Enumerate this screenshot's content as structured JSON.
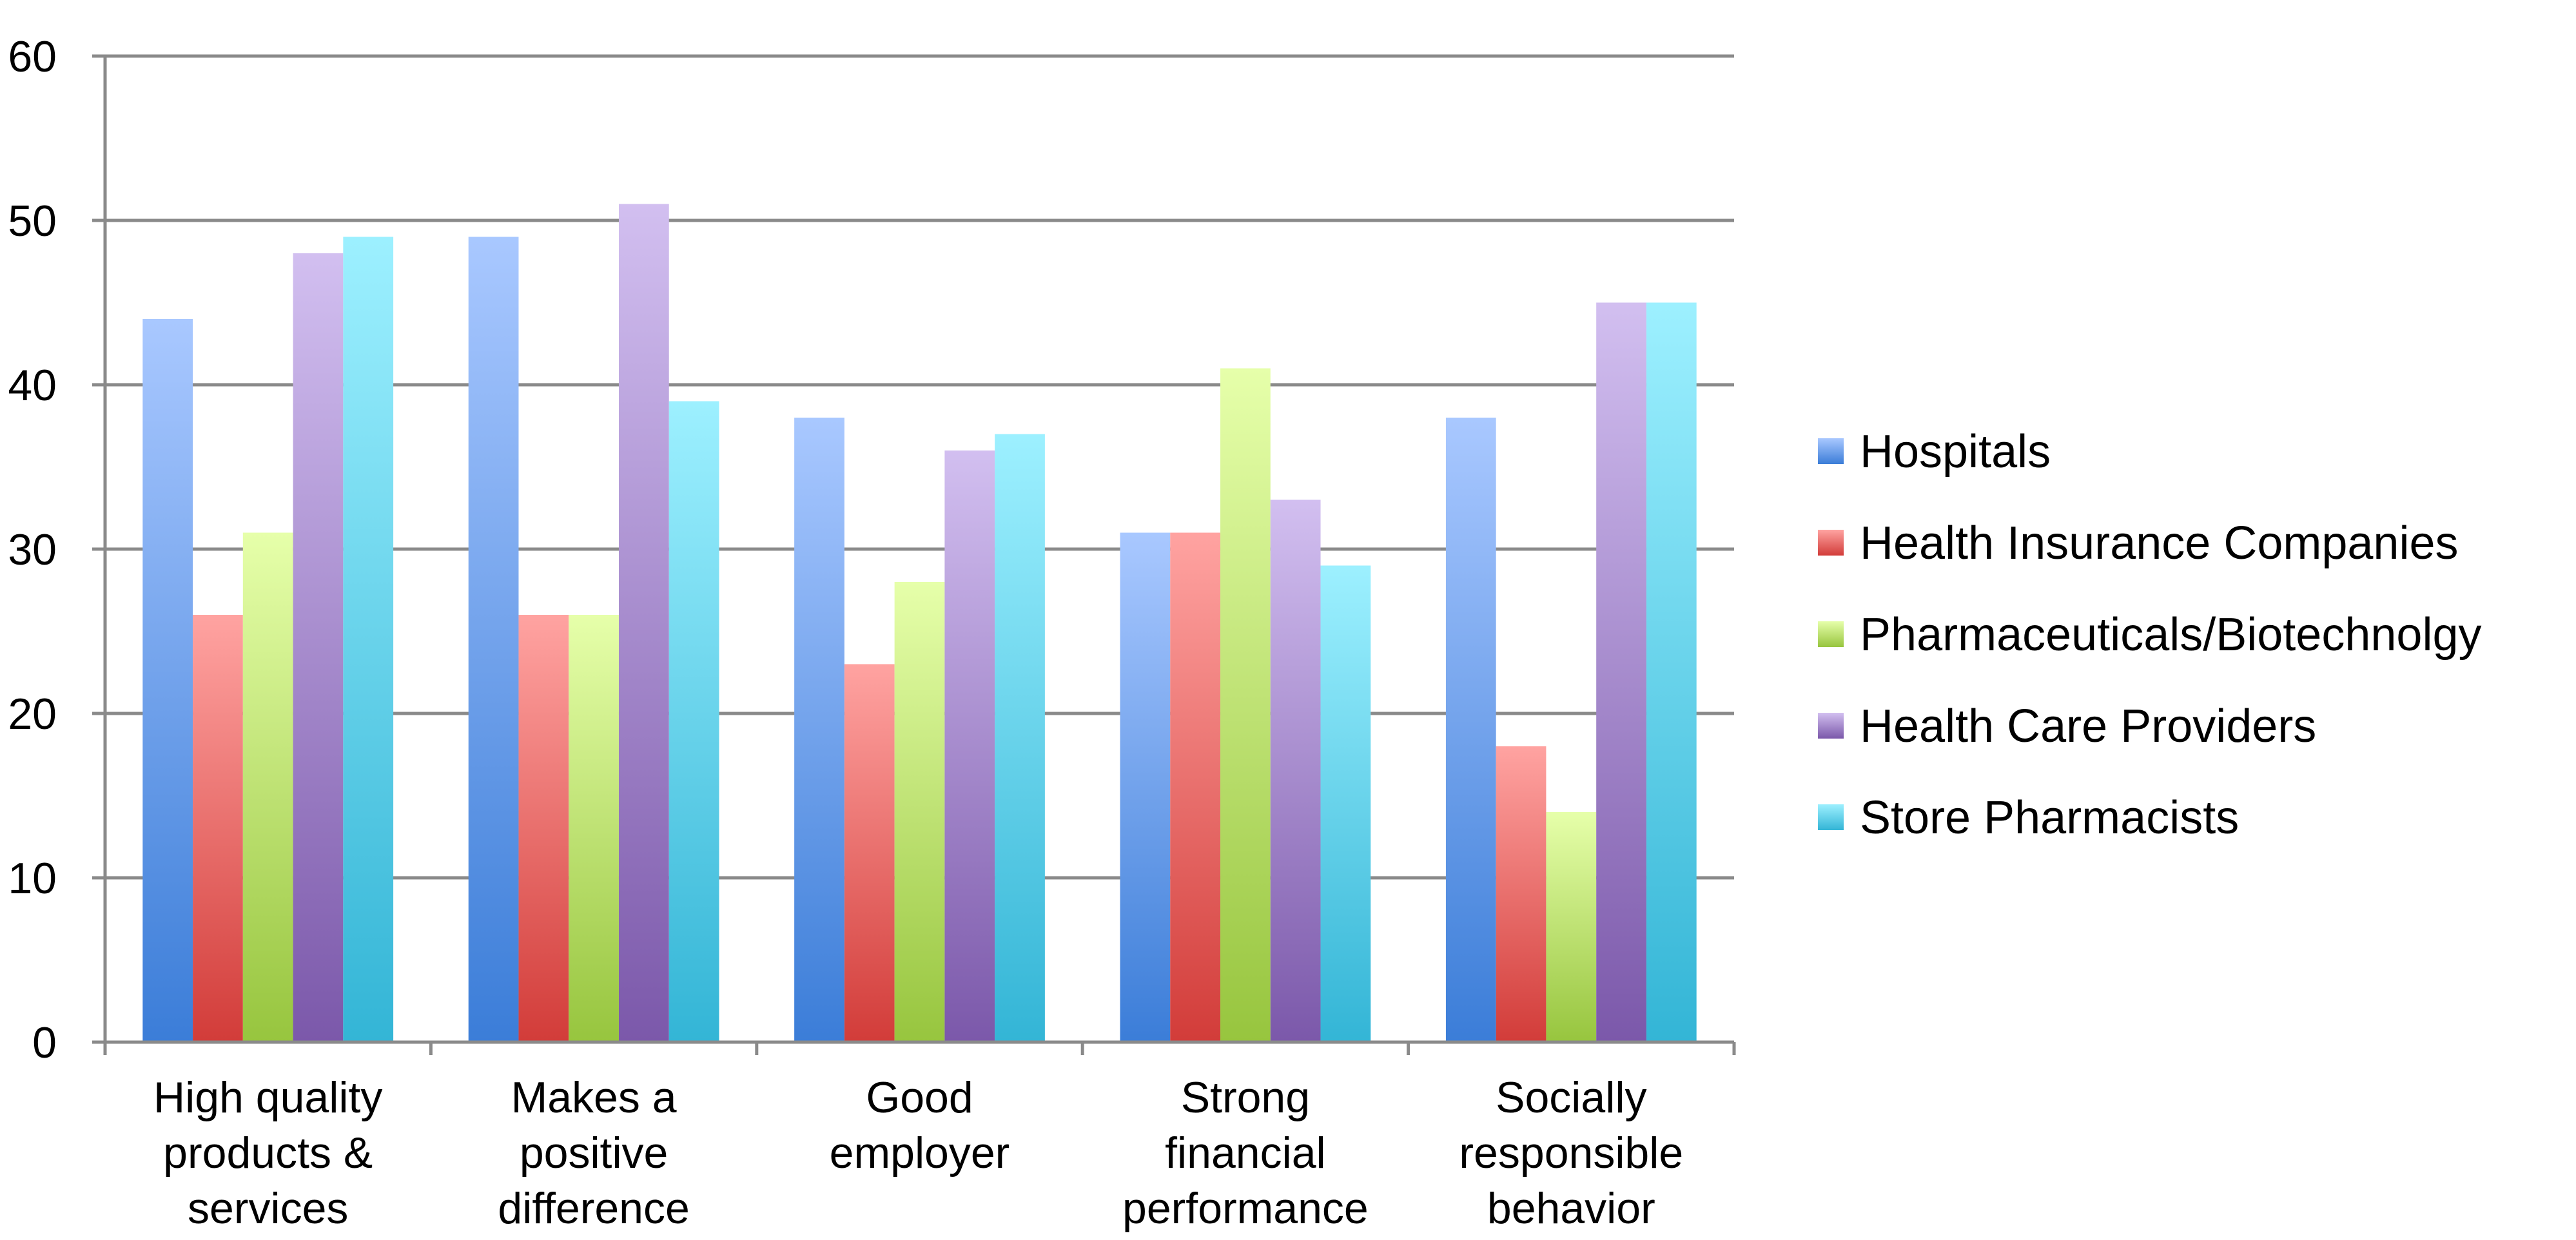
{
  "chart_data": {
    "type": "bar",
    "title": "",
    "xlabel": "",
    "ylabel": "",
    "categories": [
      "High quality products & services",
      "Makes a positive difference",
      "Good employer",
      "Strong financial performance",
      "Socially responsible behavior"
    ],
    "category_lines": [
      [
        "High quality",
        "products &",
        "services"
      ],
      [
        "Makes a",
        "positive",
        "difference"
      ],
      [
        "Good",
        "employer"
      ],
      [
        "Strong",
        "financial",
        "performance"
      ],
      [
        "Socially",
        "responsible",
        "behavior"
      ]
    ],
    "series": [
      {
        "name": "Hospitals",
        "values": [
          44,
          49,
          38,
          31,
          38
        ],
        "color": "#3b7dd8",
        "color_light": "#a9c8ff"
      },
      {
        "name": "Health Insurance Companies",
        "values": [
          26,
          26,
          23,
          31,
          18
        ],
        "color": "#d23c39",
        "color_light": "#ffa3a1"
      },
      {
        "name": "Pharmaceuticals/Biotechnolgy",
        "values": [
          31,
          26,
          28,
          41,
          14
        ],
        "color": "#97c53e",
        "color_light": "#e6ffaa"
      },
      {
        "name": "Health Care Providers",
        "values": [
          48,
          51,
          36,
          33,
          45
        ],
        "color": "#7b58aa",
        "color_light": "#d2bff0"
      },
      {
        "name": "Store Pharmacists",
        "values": [
          49,
          39,
          37,
          29,
          45
        ],
        "color": "#33b5d6",
        "color_light": "#9df0ff"
      }
    ],
    "ylim": [
      0,
      60
    ],
    "yticks": [
      0,
      10,
      20,
      30,
      40,
      50,
      60
    ],
    "grid": true,
    "legend_position": "right"
  }
}
